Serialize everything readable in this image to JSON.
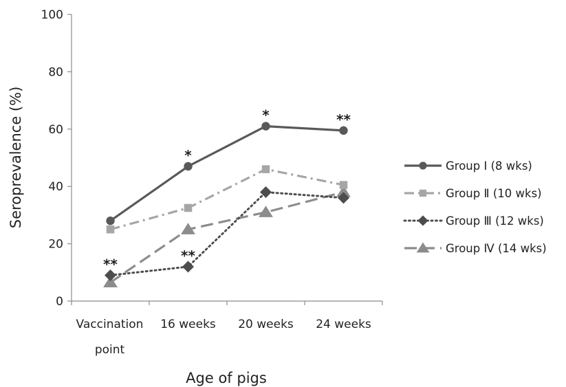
{
  "chart_data": {
    "type": "line",
    "title": "",
    "xlabel": "Age of pigs",
    "ylabel": "Seroprevalence (%)",
    "categories": [
      [
        "Vaccination",
        "point"
      ],
      [
        "16 weeks"
      ],
      [
        "20 weeks"
      ],
      [
        "24 weeks"
      ]
    ],
    "ylim": [
      0,
      100
    ],
    "yticks": [
      0,
      20,
      40,
      60,
      80,
      100
    ],
    "grid": false,
    "legend_position": "right",
    "series": [
      {
        "name": "Group Ⅰ (8 wks)",
        "values": [
          28,
          47,
          61,
          59.5
        ],
        "color": "#595959",
        "dash": "solid",
        "marker": "circle"
      },
      {
        "name": "Group Ⅱ (10 wks)",
        "values": [
          25,
          32.5,
          46,
          40.5
        ],
        "color": "#a6a6a6",
        "dash": "dash-dot",
        "marker": "square"
      },
      {
        "name": "Group Ⅲ (12 wks)",
        "values": [
          9,
          12,
          38,
          36
        ],
        "color": "#4d4d4d",
        "dash": "dotted",
        "marker": "diamond"
      },
      {
        "name": "Group Ⅳ (14 wks)",
        "values": [
          6.5,
          25,
          31,
          38
        ],
        "color": "#8c8c8c",
        "dash": "long-dash",
        "marker": "triangle"
      }
    ],
    "annotations": [
      {
        "text": "*",
        "category_index": 1,
        "y": 47
      },
      {
        "text": "*",
        "category_index": 2,
        "y": 61
      },
      {
        "text": "**",
        "category_index": 3,
        "y": 59.5
      },
      {
        "text": "**",
        "category_index": 0,
        "y": 9
      },
      {
        "text": "**",
        "category_index": 1,
        "y": 12
      }
    ]
  }
}
